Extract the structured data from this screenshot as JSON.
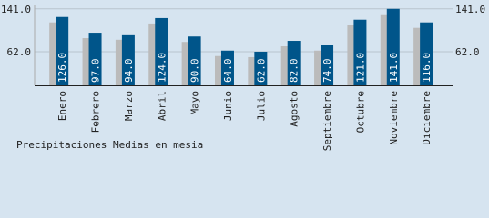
{
  "chart_data": {
    "type": "bar",
    "title": "Precipitaciones Medias en mesia",
    "categories": [
      "Enero",
      "Febrero",
      "Marzo",
      "Abril",
      "Mayo",
      "Junio",
      "Julio",
      "Agosto",
      "Septiembre",
      "Octubre",
      "Noviembre",
      "Diciembre"
    ],
    "series": [
      {
        "color": "#bbbbbb",
        "values": [
          116,
          87,
          84,
          114,
          80,
          54,
          52,
          72,
          64,
          111,
          131,
          106
        ]
      },
      {
        "color": "#00558a",
        "values": [
          126,
          97,
          94,
          124,
          90,
          64,
          62,
          82,
          74,
          121,
          141,
          116
        ],
        "value_labels": [
          "126.0",
          "97.0",
          "94.0",
          "124.0",
          "90.0",
          "64.0",
          "62.0",
          "82.0",
          "74.0",
          "121.0",
          "141.0",
          "116.0"
        ]
      }
    ],
    "ylim": [
      0,
      149
    ],
    "yticks": [
      {
        "value": 62,
        "label": "62.0"
      },
      {
        "value": 141,
        "label": "141.0"
      }
    ],
    "grid": true
  }
}
